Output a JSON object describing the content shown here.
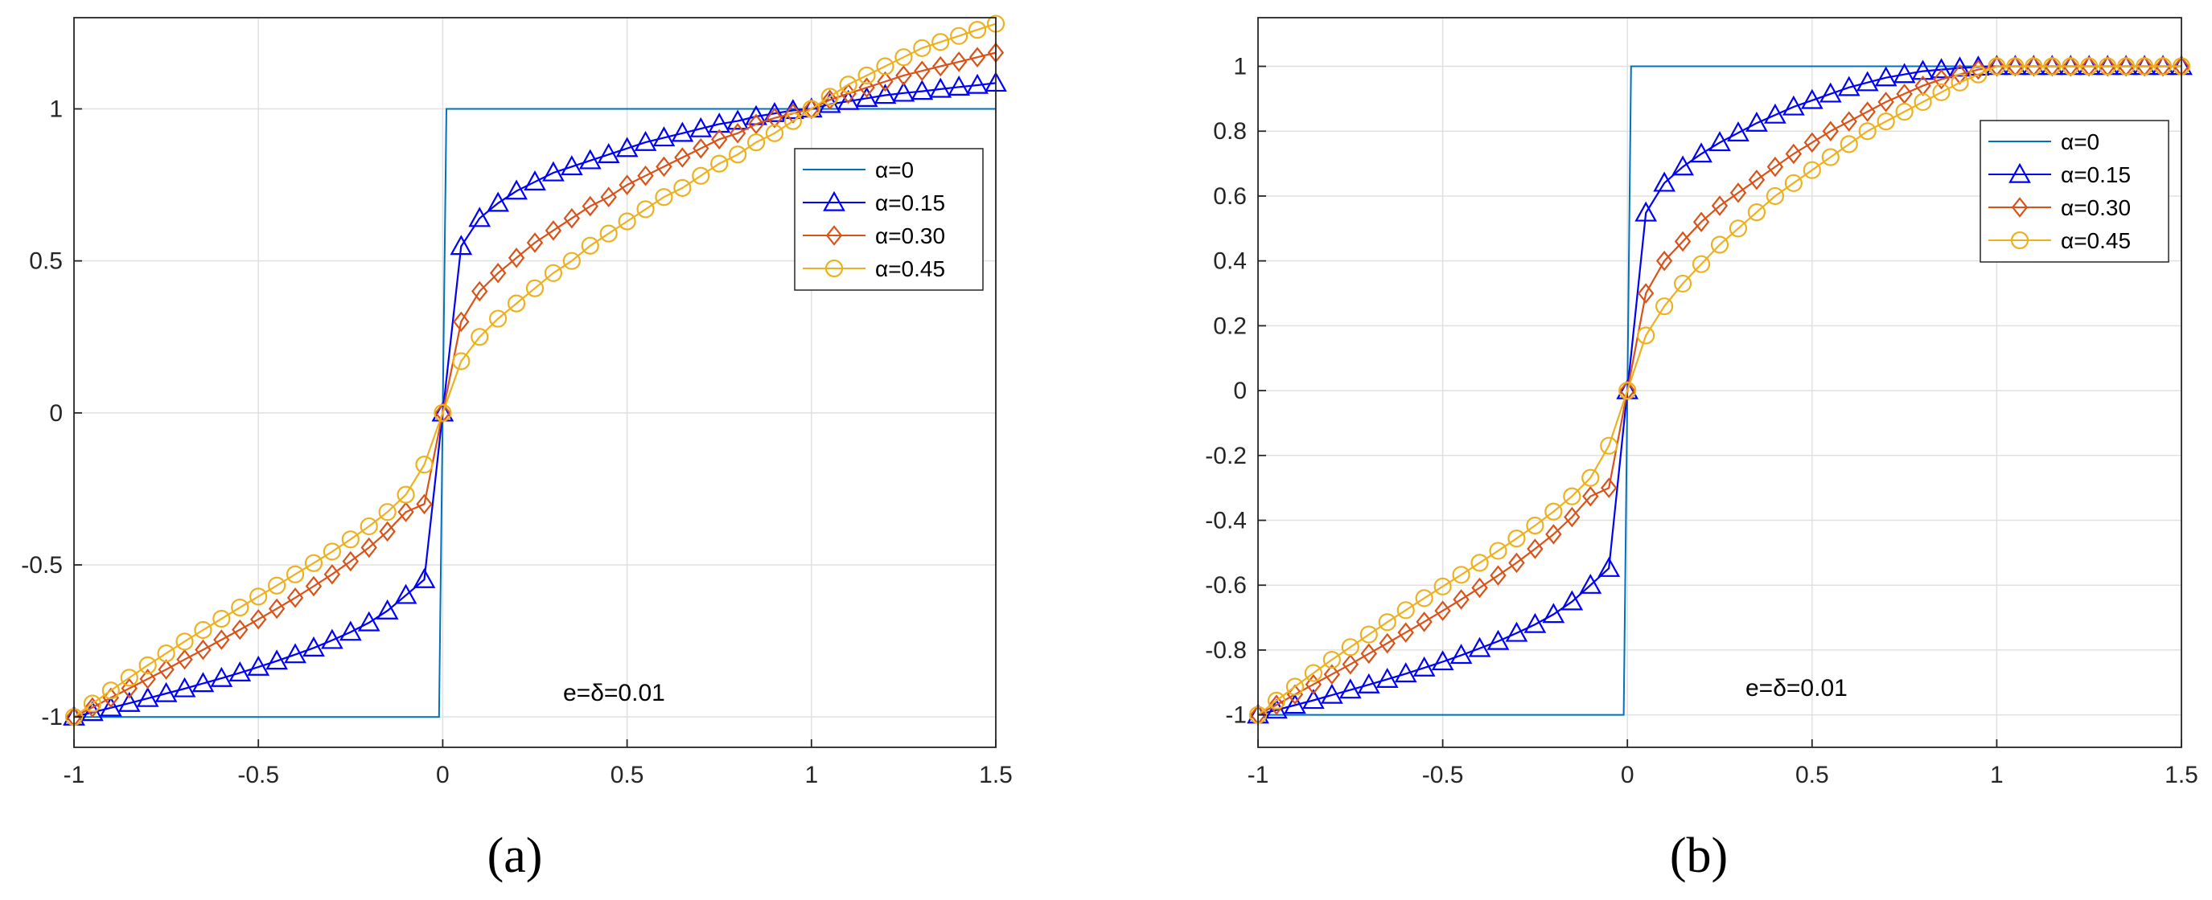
{
  "colors": {
    "a0": "#0072BD",
    "a15": "#0000FF",
    "a30": "#D95319",
    "a45": "#EDB120",
    "grid": "#e0e0e0",
    "axis": "#262626"
  },
  "chart_data": [
    {
      "type": "line",
      "panel_label": "(a)",
      "annotation": "e=δ=0.01",
      "xlim": [
        -1,
        1.5
      ],
      "ylim": [
        -1.1,
        1.3
      ],
      "xticks": [
        -1,
        -0.5,
        0,
        0.5,
        1,
        1.5
      ],
      "xtick_labels": [
        "-1",
        "-0.5",
        "0",
        "0.5",
        "1",
        "1.5"
      ],
      "yticks": [
        -1,
        -0.5,
        0,
        0.5,
        1
      ],
      "ytick_labels": [
        "-1",
        "-0.5",
        "0",
        "0.5",
        "1"
      ],
      "grid": true,
      "legend_position": "top-right",
      "series": [
        {
          "name": "α=0",
          "color": "#0072BD",
          "marker": "none",
          "x": [
            -1,
            -0.01,
            0.01,
            1.5
          ],
          "y": [
            -1,
            -1,
            1,
            1
          ]
        },
        {
          "name": "α=0.15",
          "color": "#0000FF",
          "marker": "triangle",
          "x": [
            -1,
            -0.95,
            -0.9,
            -0.85,
            -0.8,
            -0.75,
            -0.7,
            -0.65,
            -0.6,
            -0.55,
            -0.5,
            -0.45,
            -0.4,
            -0.35,
            -0.3,
            -0.25,
            -0.2,
            -0.15,
            -0.1,
            -0.05,
            0,
            0.05,
            0.1,
            0.15,
            0.2,
            0.25,
            0.3,
            0.35,
            0.4,
            0.45,
            0.5,
            0.55,
            0.6,
            0.65,
            0.7,
            0.75,
            0.8,
            0.85,
            0.9,
            0.95,
            1,
            1.05,
            1.1,
            1.15,
            1.2,
            1.25,
            1.3,
            1.35,
            1.4,
            1.45,
            1.5
          ],
          "y": [
            -1.0,
            -0.985,
            -0.97,
            -0.955,
            -0.939,
            -0.923,
            -0.907,
            -0.89,
            -0.873,
            -0.855,
            -0.836,
            -0.816,
            -0.795,
            -0.773,
            -0.748,
            -0.721,
            -0.69,
            -0.651,
            -0.6,
            -0.548,
            0.0,
            0.548,
            0.64,
            0.69,
            0.73,
            0.76,
            0.79,
            0.81,
            0.83,
            0.85,
            0.87,
            0.89,
            0.905,
            0.92,
            0.935,
            0.95,
            0.96,
            0.975,
            0.985,
            0.995,
            1.0,
            1.015,
            1.025,
            1.035,
            1.045,
            1.052,
            1.058,
            1.065,
            1.072,
            1.078,
            1.085
          ]
        },
        {
          "name": "α=0.30",
          "color": "#D95319",
          "marker": "diamond",
          "x": [
            -1,
            -0.95,
            -0.9,
            -0.85,
            -0.8,
            -0.75,
            -0.7,
            -0.65,
            -0.6,
            -0.55,
            -0.5,
            -0.45,
            -0.4,
            -0.35,
            -0.3,
            -0.25,
            -0.2,
            -0.15,
            -0.1,
            -0.05,
            0,
            0.05,
            0.1,
            0.15,
            0.2,
            0.25,
            0.3,
            0.35,
            0.4,
            0.45,
            0.5,
            0.55,
            0.6,
            0.65,
            0.7,
            0.75,
            0.8,
            0.85,
            0.9,
            0.95,
            1,
            1.05,
            1.1,
            1.15,
            1.2,
            1.25,
            1.3,
            1.35,
            1.4,
            1.45,
            1.5
          ],
          "y": [
            -1.0,
            -0.969,
            -0.937,
            -0.906,
            -0.875,
            -0.844,
            -0.811,
            -0.779,
            -0.746,
            -0.713,
            -0.679,
            -0.644,
            -0.608,
            -0.57,
            -0.531,
            -0.488,
            -0.443,
            -0.39,
            -0.326,
            -0.3,
            0.0,
            0.3,
            0.4,
            0.46,
            0.51,
            0.56,
            0.6,
            0.64,
            0.68,
            0.71,
            0.75,
            0.78,
            0.81,
            0.84,
            0.87,
            0.9,
            0.92,
            0.95,
            0.97,
            0.985,
            1.0,
            1.03,
            1.05,
            1.07,
            1.09,
            1.11,
            1.125,
            1.14,
            1.155,
            1.17,
            1.185
          ]
        },
        {
          "name": "α=0.45",
          "color": "#EDB120",
          "marker": "circle",
          "x": [
            -1,
            -0.95,
            -0.9,
            -0.85,
            -0.8,
            -0.75,
            -0.7,
            -0.65,
            -0.6,
            -0.55,
            -0.5,
            -0.45,
            -0.4,
            -0.35,
            -0.3,
            -0.25,
            -0.2,
            -0.15,
            -0.1,
            -0.05,
            0,
            0.05,
            0.1,
            0.15,
            0.2,
            0.25,
            0.3,
            0.35,
            0.4,
            0.45,
            0.5,
            0.55,
            0.6,
            0.65,
            0.7,
            0.75,
            0.8,
            0.85,
            0.9,
            0.95,
            1,
            1.05,
            1.1,
            1.15,
            1.2,
            1.25,
            1.3,
            1.35,
            1.4,
            1.45,
            1.5
          ],
          "y": [
            -1.0,
            -0.956,
            -0.913,
            -0.871,
            -0.83,
            -0.791,
            -0.752,
            -0.714,
            -0.677,
            -0.64,
            -0.604,
            -0.568,
            -0.531,
            -0.494,
            -0.456,
            -0.416,
            -0.373,
            -0.326,
            -0.269,
            -0.17,
            0.0,
            0.17,
            0.25,
            0.31,
            0.36,
            0.41,
            0.46,
            0.5,
            0.55,
            0.59,
            0.63,
            0.67,
            0.71,
            0.74,
            0.78,
            0.82,
            0.85,
            0.89,
            0.92,
            0.96,
            1.0,
            1.04,
            1.08,
            1.11,
            1.14,
            1.17,
            1.2,
            1.22,
            1.24,
            1.26,
            1.28
          ]
        }
      ]
    },
    {
      "type": "line",
      "panel_label": "(b)",
      "annotation": "e=δ=0.01",
      "xlim": [
        -1,
        1.5
      ],
      "ylim": [
        -1.1,
        1.15
      ],
      "xticks": [
        -1,
        -0.5,
        0,
        0.5,
        1,
        1.5
      ],
      "xtick_labels": [
        "-1",
        "-0.5",
        "0",
        "0.5",
        "1",
        "1.5"
      ],
      "yticks": [
        -1,
        -0.8,
        -0.6,
        -0.4,
        -0.2,
        0,
        0.2,
        0.4,
        0.6,
        0.8,
        1
      ],
      "ytick_labels": [
        "-1",
        "-0.8",
        "-0.6",
        "-0.4",
        "-0.2",
        "0",
        "0.2",
        "0.4",
        "0.6",
        "0.8",
        "1"
      ],
      "grid": true,
      "legend_position": "top-right",
      "series": [
        {
          "name": "α=0",
          "color": "#0072BD",
          "marker": "none",
          "x": [
            -1,
            -0.01,
            0.01,
            1.5
          ],
          "y": [
            -1,
            -1,
            1,
            1
          ]
        },
        {
          "name": "α=0.15",
          "color": "#0000FF",
          "marker": "triangle",
          "x": [
            -1,
            -0.95,
            -0.9,
            -0.85,
            -0.8,
            -0.75,
            -0.7,
            -0.65,
            -0.6,
            -0.55,
            -0.5,
            -0.45,
            -0.4,
            -0.35,
            -0.3,
            -0.25,
            -0.2,
            -0.15,
            -0.1,
            -0.05,
            0,
            0.05,
            0.1,
            0.15,
            0.2,
            0.25,
            0.3,
            0.35,
            0.4,
            0.45,
            0.5,
            0.55,
            0.6,
            0.65,
            0.7,
            0.75,
            0.8,
            0.85,
            0.9,
            0.95,
            1,
            1.05,
            1.1,
            1.15,
            1.2,
            1.25,
            1.3,
            1.35,
            1.4,
            1.45,
            1.5
          ],
          "y": [
            -1.0,
            -0.985,
            -0.97,
            -0.955,
            -0.939,
            -0.923,
            -0.907,
            -0.89,
            -0.873,
            -0.855,
            -0.836,
            -0.816,
            -0.795,
            -0.773,
            -0.748,
            -0.721,
            -0.69,
            -0.651,
            -0.6,
            -0.548,
            0.0,
            0.548,
            0.64,
            0.69,
            0.73,
            0.765,
            0.795,
            0.825,
            0.85,
            0.875,
            0.895,
            0.915,
            0.935,
            0.95,
            0.965,
            0.975,
            0.985,
            0.99,
            0.995,
            0.998,
            1.0,
            1.0,
            1.0,
            1.0,
            1.0,
            1.0,
            1.0,
            1.0,
            1.0,
            1.0,
            1.0
          ]
        },
        {
          "name": "α=0.30",
          "color": "#D95319",
          "marker": "diamond",
          "x": [
            -1,
            -0.95,
            -0.9,
            -0.85,
            -0.8,
            -0.75,
            -0.7,
            -0.65,
            -0.6,
            -0.55,
            -0.5,
            -0.45,
            -0.4,
            -0.35,
            -0.3,
            -0.25,
            -0.2,
            -0.15,
            -0.1,
            -0.05,
            0,
            0.05,
            0.1,
            0.15,
            0.2,
            0.25,
            0.3,
            0.35,
            0.4,
            0.45,
            0.5,
            0.55,
            0.6,
            0.65,
            0.7,
            0.75,
            0.8,
            0.85,
            0.9,
            0.95,
            1,
            1.05,
            1.1,
            1.15,
            1.2,
            1.25,
            1.3,
            1.35,
            1.4,
            1.45,
            1.5
          ],
          "y": [
            -1.0,
            -0.969,
            -0.937,
            -0.906,
            -0.875,
            -0.844,
            -0.811,
            -0.779,
            -0.746,
            -0.713,
            -0.679,
            -0.644,
            -0.608,
            -0.57,
            -0.531,
            -0.488,
            -0.443,
            -0.39,
            -0.326,
            -0.3,
            0.0,
            0.3,
            0.4,
            0.46,
            0.52,
            0.57,
            0.61,
            0.65,
            0.69,
            0.73,
            0.765,
            0.8,
            0.83,
            0.86,
            0.89,
            0.915,
            0.94,
            0.96,
            0.975,
            0.99,
            1.0,
            1.0,
            1.0,
            1.0,
            1.0,
            1.0,
            1.0,
            1.0,
            1.0,
            1.0,
            1.0
          ]
        },
        {
          "name": "α=0.45",
          "color": "#EDB120",
          "marker": "circle",
          "x": [
            -1,
            -0.95,
            -0.9,
            -0.85,
            -0.8,
            -0.75,
            -0.7,
            -0.65,
            -0.6,
            -0.55,
            -0.5,
            -0.45,
            -0.4,
            -0.35,
            -0.3,
            -0.25,
            -0.2,
            -0.15,
            -0.1,
            -0.05,
            0,
            0.05,
            0.1,
            0.15,
            0.2,
            0.25,
            0.3,
            0.35,
            0.4,
            0.45,
            0.5,
            0.55,
            0.6,
            0.65,
            0.7,
            0.75,
            0.8,
            0.85,
            0.9,
            0.95,
            1,
            1.05,
            1.1,
            1.15,
            1.2,
            1.25,
            1.3,
            1.35,
            1.4,
            1.45,
            1.5
          ],
          "y": [
            -1.0,
            -0.956,
            -0.913,
            -0.871,
            -0.83,
            -0.791,
            -0.752,
            -0.714,
            -0.677,
            -0.64,
            -0.604,
            -0.568,
            -0.531,
            -0.494,
            -0.456,
            -0.416,
            -0.373,
            -0.326,
            -0.269,
            -0.17,
            0.0,
            0.17,
            0.26,
            0.33,
            0.39,
            0.45,
            0.5,
            0.55,
            0.6,
            0.64,
            0.68,
            0.72,
            0.76,
            0.8,
            0.83,
            0.86,
            0.89,
            0.92,
            0.95,
            0.975,
            1.0,
            1.0,
            1.0,
            1.0,
            1.0,
            1.0,
            1.0,
            1.0,
            1.0,
            1.0,
            1.0
          ]
        }
      ]
    }
  ]
}
